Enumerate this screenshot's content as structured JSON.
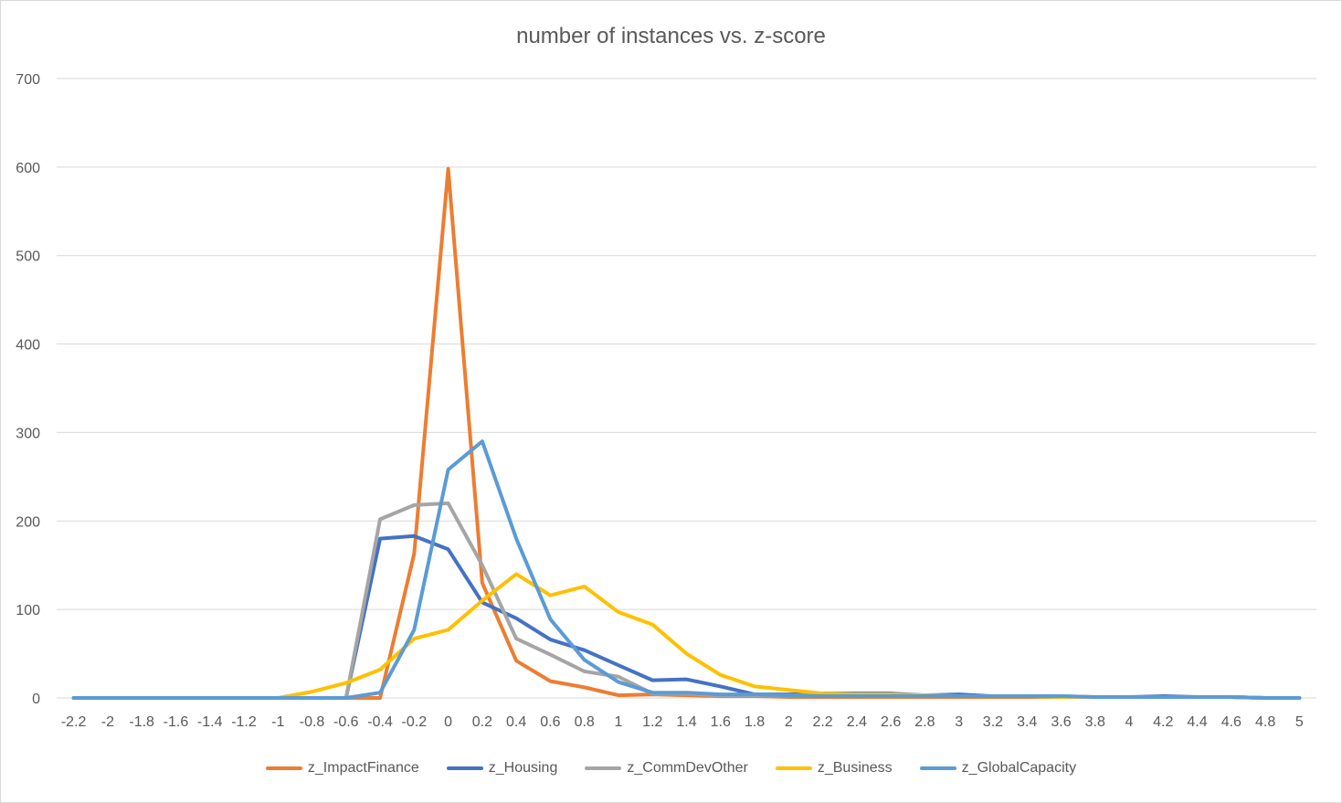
{
  "chart_data": {
    "type": "line",
    "title": "number of instances vs. z-score",
    "xlabel": "",
    "ylabel": "",
    "ylim": [
      0,
      700
    ],
    "yticks": [
      0,
      100,
      200,
      300,
      400,
      500,
      600,
      700
    ],
    "grid": true,
    "legend_position": "bottom",
    "x": [
      "-2.2",
      "-2",
      "-1.8",
      "-1.6",
      "-1.4",
      "-1.2",
      "-1",
      "-0.8",
      "-0.6",
      "-0.4",
      "-0.2",
      "0",
      "0.2",
      "0.4",
      "0.6",
      "0.8",
      "1",
      "1.2",
      "1.4",
      "1.6",
      "1.8",
      "2",
      "2.2",
      "2.4",
      "2.6",
      "2.8",
      "3",
      "3.2",
      "3.4",
      "3.6",
      "3.8",
      "4",
      "4.2",
      "4.4",
      "4.6",
      "4.8",
      "5"
    ],
    "series": [
      {
        "name": "z_ImpactFinance",
        "color": "#ED7D31",
        "values": [
          0,
          0,
          0,
          0,
          0,
          0,
          0,
          0,
          0,
          0,
          163,
          598,
          130,
          42,
          19,
          12,
          3,
          4,
          3,
          2,
          2,
          1,
          1,
          1,
          1,
          1,
          1,
          1,
          1,
          1,
          1,
          1,
          1,
          1,
          1,
          0,
          0
        ]
      },
      {
        "name": "z_Housing",
        "color": "#4472C4",
        "values": [
          0,
          0,
          0,
          0,
          0,
          0,
          0,
          0,
          0,
          180,
          183,
          168,
          108,
          90,
          66,
          54,
          37,
          20,
          21,
          13,
          4,
          4,
          5,
          5,
          5,
          3,
          4,
          2,
          2,
          1,
          1,
          1,
          2,
          1,
          1,
          0,
          0
        ]
      },
      {
        "name": "z_CommDevOther",
        "color": "#A5A5A5",
        "values": [
          0,
          0,
          0,
          0,
          0,
          0,
          0,
          0,
          0,
          202,
          218,
          220,
          150,
          67,
          49,
          30,
          24,
          5,
          5,
          3,
          3,
          3,
          3,
          3,
          3,
          2,
          2,
          2,
          2,
          2,
          1,
          1,
          1,
          1,
          1,
          0,
          0
        ]
      },
      {
        "name": "z_Business",
        "color": "#FFC000",
        "values": [
          0,
          0,
          0,
          0,
          0,
          0,
          0,
          7,
          17,
          32,
          67,
          77,
          110,
          140,
          116,
          126,
          97,
          83,
          50,
          26,
          13,
          9,
          5,
          4,
          4,
          3,
          2,
          2,
          2,
          1,
          1,
          1,
          1,
          1,
          1,
          0,
          0
        ]
      },
      {
        "name": "z_GlobalCapacity",
        "color": "#5B9BD5",
        "values": [
          0,
          0,
          0,
          0,
          0,
          0,
          0,
          0,
          0,
          6,
          77,
          258,
          290,
          180,
          89,
          43,
          18,
          6,
          6,
          4,
          4,
          3,
          2,
          2,
          2,
          2,
          2,
          2,
          2,
          2,
          1,
          1,
          1,
          1,
          1,
          0,
          0
        ]
      }
    ]
  }
}
